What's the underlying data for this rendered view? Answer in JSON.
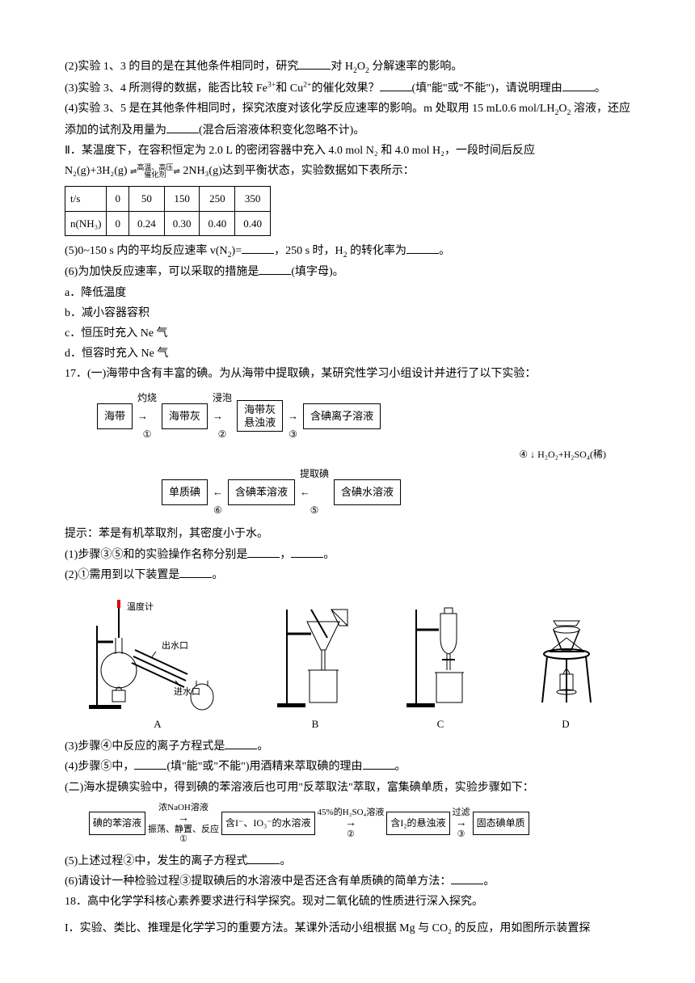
{
  "q2": "(2)实验 1、3 的目的是在其他条件相同时，研究______对 H₂O₂ 分解速率的影响。",
  "q3": "(3)实验 3、4 所测得的数据，能否比较 Fe³⁺和 Cu²⁺的催化效果？______(填\"能\"或\"不能\")，请说明理由______。",
  "q4": "(4)实验 3、5 是在其他条件相同时，探究浓度对该化学反应速率的影响。m 处取用 15 mL0.6 mol/LH₂O₂ 溶液，还应添加的试剂及用量为______(混合后溶液体积变化忽略不计)。",
  "part2intro": "Ⅱ．某温度下，在容积恒定为 2.0 L 的密闭容器中充入 4.0 mol N₂ 和 4.0 mol H₂，一段时间后反应",
  "eqLeft": "N₂(g)+3H₂(g)",
  "eqCondTop": "高温、高压",
  "eqCondBot": "催化剂",
  "eqRight": " 2NH₃(g)达到平衡状态，实验数据如下表所示：",
  "table": {
    "row1": [
      "t/s",
      "0",
      "50",
      "150",
      "250",
      "350"
    ],
    "row2": [
      "n(NH₃)",
      "0",
      "0.24",
      "0.30",
      "0.40",
      "0.40"
    ]
  },
  "q5": "(5)0~150 s 内的平均反应速率 v(N₂)=______，250 s 时，H₂ 的转化率为______。",
  "q6": "(6)为加快反应速率，可以采取的措施是______(填字母)。",
  "opts": {
    "a": "a．降低温度",
    "b": "b．减小容器容积",
    "c": "c．恒压时充入 Ne 气",
    "d": "d．恒容时充入 Ne 气"
  },
  "q17": "17．(一)海带中含有丰富的碘。为从海带中提取碘，某研究性学习小组设计并进行了以下实验：",
  "flow1": {
    "b1": "海带",
    "a1": "灼烧",
    "c1": "①",
    "b2": "海带灰",
    "a2": "浸泡",
    "c2": "②",
    "b3": "海带灰\n悬浊液",
    "c3": "③",
    "b4": "含碘离子溶液",
    "a4": "H₂O₂+H₂SO₄(稀)",
    "c4": "④",
    "b5": "含碘水溶液",
    "a5": "提取碘",
    "c5": "⑤",
    "b6": "含碘苯溶液",
    "c6": "⑥",
    "b7": "单质碘"
  },
  "hint": "提示：苯是有机萃取剂，其密度小于水。",
  "q17_1": "(1)步骤③⑤和的实验操作名称分别是______，______。",
  "q17_2": "(2)①需用到以下装置是______。",
  "appLabels": {
    "A": "A",
    "B": "B",
    "C": "C",
    "D": "D"
  },
  "appAnno": {
    "thermo": "温度计",
    "outlet": "出水口",
    "inlet": "进水口"
  },
  "q17_3": "(3)步骤④中反应的离子方程式是______。",
  "q17_4": "(4)步骤⑤中，______(填\"能\"或\"不能\")用酒精来萃取碘的理由______。",
  "q17_ii": "(二)海水提碘实验中，得到碘的苯溶液后也可用\"反萃取法\"萃取，富集碘单质，实验步骤如下：",
  "flow2": {
    "b1": "碘的苯溶液",
    "t1top": "浓NaOH溶液",
    "t1bot": "振荡、静置、反应",
    "c1": "①",
    "b2": "含I⁻、IO₃⁻的水溶液",
    "t2top": "45%的H₂SO₄溶液",
    "c2": "②",
    "b3": "含I₂的悬浊液",
    "t3top": "过滤",
    "c3": "③",
    "b4": "固态碘单质"
  },
  "q17_5": "(5)上述过程②中，发生的离子方程式______。",
  "q17_6": "(6)请设计一种检验过程③提取碘后的水溶液中是否还含有单质碘的简单方法：______。",
  "q18": "18．高中化学学科核心素养要求进行科学探究。现对二氧化硫的性质进行深入探究。",
  "q18_I": "I．实验、类比、推理是化学学习的重要方法。某课外活动小组根据 Mg 与 CO₂ 的反应，用如图所示装置探"
}
